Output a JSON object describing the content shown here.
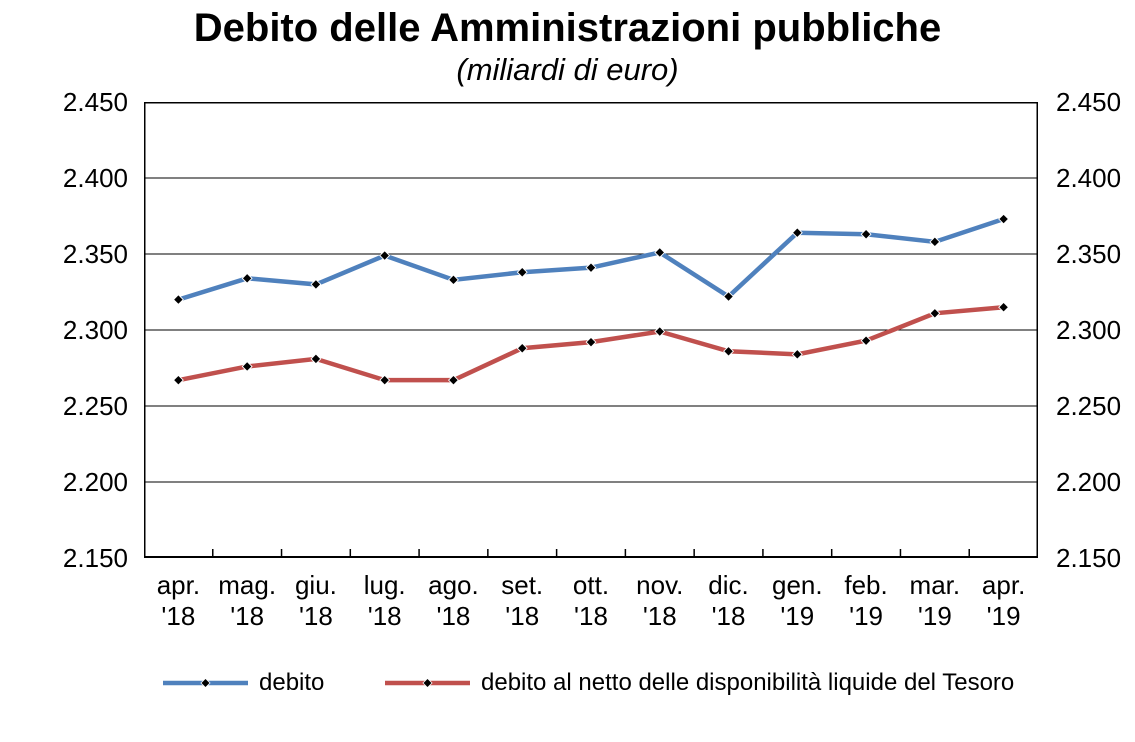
{
  "title": "Debito delle Amministrazioni pubbliche",
  "subtitle": "(miliardi di euro)",
  "chart_data": {
    "type": "line",
    "categories": [
      "apr. '18",
      "mag. '18",
      "giu. '18",
      "lug. '18",
      "ago. '18",
      "set. '18",
      "ott. '18",
      "nov. '18",
      "dic. '18",
      "gen. '19",
      "feb. '19",
      "mar. '19",
      "apr. '19"
    ],
    "series": [
      {
        "name": "debito",
        "color": "#4F81BD",
        "values": [
          2.32,
          2.334,
          2.33,
          2.349,
          2.333,
          2.338,
          2.341,
          2.351,
          2.322,
          2.364,
          2.363,
          2.358,
          2.373
        ]
      },
      {
        "name": "debito al netto delle disponibilità liquide del Tesoro",
        "color": "#C0504D",
        "values": [
          2.267,
          2.276,
          2.281,
          2.267,
          2.267,
          2.288,
          2.292,
          2.299,
          2.286,
          2.284,
          2.293,
          2.311,
          2.315
        ]
      }
    ],
    "ylim": [
      2.15,
      2.45
    ],
    "y_ticks": [
      {
        "label": "2.450",
        "value": 2.45
      },
      {
        "label": "2.400",
        "value": 2.4
      },
      {
        "label": "2.350",
        "value": 2.35
      },
      {
        "label": "2.300",
        "value": 2.3
      },
      {
        "label": "2.250",
        "value": 2.25
      },
      {
        "label": "2.200",
        "value": 2.2
      },
      {
        "label": "2.150",
        "value": 2.15
      }
    ],
    "y_axis_sides": [
      "left",
      "right"
    ],
    "grid": true,
    "marker": "diamond",
    "marker_color": "#000000",
    "legend_position": "bottom",
    "xlabel": "",
    "ylabel": ""
  }
}
